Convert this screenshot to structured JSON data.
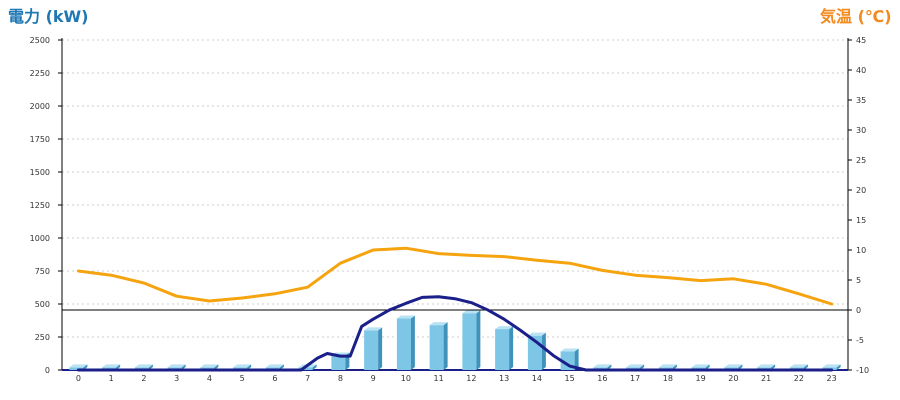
{
  "chart_data": {
    "type": "bar",
    "title_left": "電力 (kW)",
    "title_right": "気温 (℃)",
    "categories": [
      "0",
      "1",
      "2",
      "3",
      "4",
      "5",
      "6",
      "7",
      "8",
      "9",
      "10",
      "11",
      "12",
      "13",
      "14",
      "15",
      "16",
      "17",
      "18",
      "19",
      "20",
      "21",
      "22",
      "23"
    ],
    "y_left": {
      "min": 0,
      "max": 2500,
      "ticks": [
        "0",
        "250",
        "500",
        "750",
        "1000",
        "1250",
        "1500",
        "1750",
        "2000",
        "2250",
        "2500"
      ]
    },
    "y_right": {
      "min": -10,
      "max": 45,
      "ticks": [
        "-10",
        "-5",
        "0",
        "5",
        "10",
        "15",
        "20",
        "25",
        "30",
        "35",
        "40",
        "45"
      ]
    },
    "reference_line_kW": 455,
    "grid": true,
    "colors": {
      "bar_face": "#7ec6e6",
      "bar_side": "#3f93bb",
      "bar_top": "#b9e3f4",
      "temperature": "#f5a30f",
      "power_line": "#1b1f8a",
      "reference": "#000000",
      "grid": "#cccccc"
    },
    "series": [
      {
        "type": "bar",
        "axis": "left",
        "values": [
          20,
          20,
          20,
          20,
          20,
          20,
          20,
          20,
          110,
          300,
          390,
          340,
          430,
          310,
          260,
          140,
          20,
          20,
          20,
          20,
          20,
          20,
          20,
          20
        ]
      },
      {
        "type": "line",
        "axis": "right",
        "values": [
          6.5,
          5.8,
          4.5,
          2.3,
          1.5,
          2.0,
          2.7,
          3.8,
          7.8,
          10.0,
          10.3,
          9.4,
          9.1,
          8.9,
          8.3,
          7.8,
          6.6,
          5.8,
          5.4,
          4.9,
          5.2,
          4.3,
          2.7,
          1.0
        ]
      },
      {
        "type": "line",
        "axis": "left",
        "x": [
          0,
          1,
          2,
          3,
          4,
          5,
          6,
          6.8,
          7.3,
          7.6,
          8.0,
          8.3,
          8.65,
          9,
          9.5,
          10,
          10.5,
          11,
          11.5,
          12,
          12.5,
          13,
          13.5,
          14,
          14.5,
          15,
          15.5,
          16,
          17,
          18,
          19,
          20,
          21,
          22,
          23
        ],
        "values": [
          0,
          0,
          0,
          0,
          0,
          0,
          0,
          0,
          90,
          125,
          105,
          105,
          330,
          385,
          455,
          505,
          550,
          555,
          540,
          510,
          455,
          385,
          300,
          210,
          110,
          30,
          0,
          0,
          0,
          0,
          0,
          0,
          0,
          0,
          0
        ]
      }
    ]
  }
}
